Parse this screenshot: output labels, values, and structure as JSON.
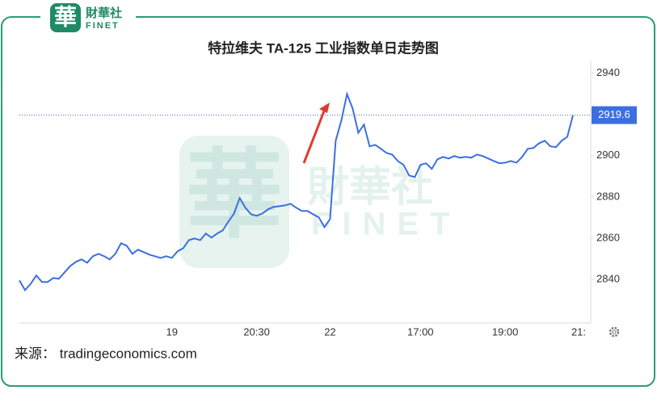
{
  "brand": {
    "mark": "華",
    "name": "財華社",
    "en": "FINET"
  },
  "source": "来源： tradingeconomics.com",
  "chart_data": {
    "type": "line",
    "title": "特拉维夫 TA-125 工业指数单日走势图",
    "categories": [
      null,
      null,
      null,
      null,
      null,
      null,
      null,
      null,
      null,
      null,
      null,
      null,
      null,
      null,
      null,
      null,
      null,
      null,
      null,
      null,
      null,
      null,
      null,
      null,
      null,
      null,
      null,
      "19",
      null,
      null,
      null,
      null,
      null,
      null,
      null,
      null,
      null,
      null,
      null,
      null,
      null,
      null,
      "20:30",
      null,
      null,
      null,
      null,
      null,
      null,
      null,
      null,
      null,
      null,
      null,
      null,
      "22",
      null,
      null,
      null,
      null,
      null,
      null,
      null,
      null,
      null,
      null,
      null,
      null,
      null,
      null,
      null,
      "17:00",
      null,
      null,
      null,
      null,
      null,
      null,
      null,
      null,
      null,
      null,
      null,
      null,
      null,
      null,
      "19:00",
      null,
      null,
      null,
      null,
      null,
      null,
      null,
      null,
      null,
      null,
      null,
      null,
      "21:"
    ],
    "values": [
      2839.6,
      2834.9,
      2838.0,
      2842.0,
      2838.8,
      2838.8,
      2840.8,
      2840.4,
      2843.5,
      2846.6,
      2848.6,
      2849.8,
      2848.2,
      2851.3,
      2852.5,
      2851.3,
      2849.8,
      2852.5,
      2857.6,
      2856.4,
      2852.5,
      2854.5,
      2853.3,
      2852.1,
      2851.3,
      2850.5,
      2851.3,
      2850.5,
      2853.7,
      2855.2,
      2859.1,
      2859.9,
      2859.1,
      2862.3,
      2860.3,
      2862.3,
      2863.8,
      2868.1,
      2872.0,
      2879.5,
      2874.8,
      2871.6,
      2870.9,
      2872.0,
      2874.0,
      2875.2,
      2875.5,
      2875.9,
      2876.7,
      2874.8,
      2873.2,
      2873.2,
      2871.6,
      2870.1,
      2865.4,
      2869.3,
      2907.2,
      2917.0,
      2929.8,
      2922.8,
      2911.1,
      2915.0,
      2904.5,
      2905.2,
      2903.3,
      2901.3,
      2900.5,
      2897.4,
      2895.5,
      2890.4,
      2889.6,
      2895.5,
      2896.3,
      2893.6,
      2898.2,
      2899.4,
      2898.6,
      2899.8,
      2899.0,
      2899.4,
      2899.0,
      2900.5,
      2899.8,
      2898.6,
      2897.4,
      2896.3,
      2896.6,
      2897.4,
      2896.6,
      2899.4,
      2903.3,
      2903.7,
      2906.0,
      2907.2,
      2904.5,
      2904.1,
      2907.2,
      2909.1,
      2919.6,
      null
    ],
    "color": "#3b6fe0",
    "ylim": [
      2819,
      2946
    ],
    "yticks": [
      2840,
      2860,
      2880,
      2900,
      2940
    ],
    "grid": false
  }
}
